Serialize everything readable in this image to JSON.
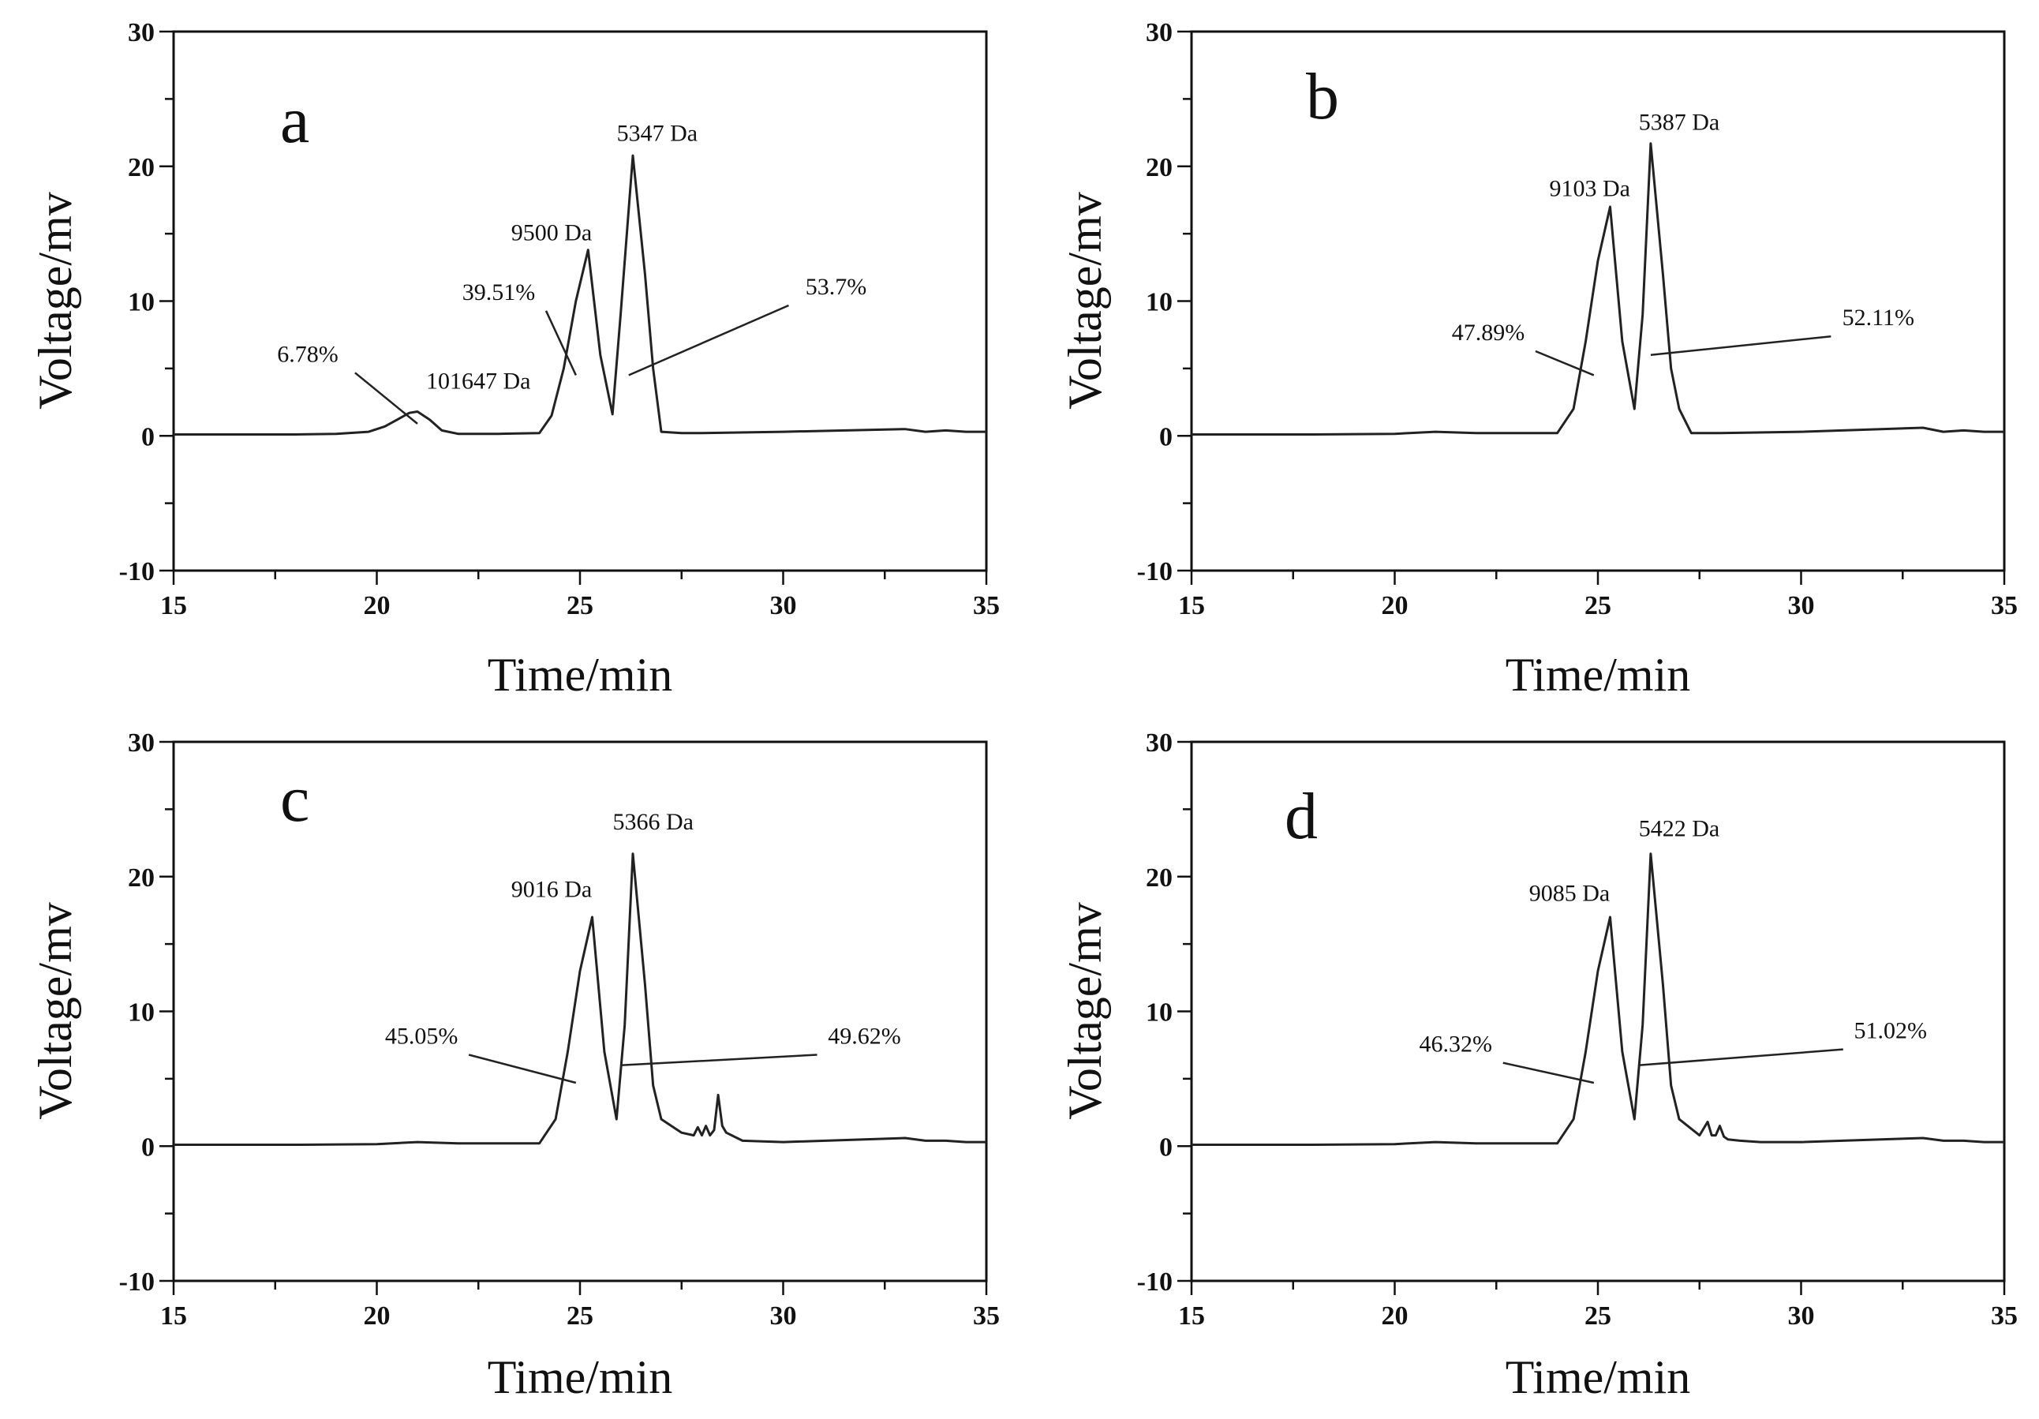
{
  "chart_data": [
    {
      "type": "line",
      "panel_label": "a",
      "xlabel": "Time/min",
      "ylabel": "Voltage/mv",
      "xlim": [
        15,
        35
      ],
      "ylim": [
        -10,
        30
      ],
      "xticks": [
        15,
        20,
        25,
        30,
        35
      ],
      "yticks": [
        -10,
        0,
        10,
        20,
        30
      ],
      "grid": false,
      "x": [
        15,
        16,
        17,
        18,
        19,
        19.8,
        20.2,
        20.5,
        20.8,
        21.0,
        21.3,
        21.6,
        22,
        23,
        24,
        24.3,
        24.6,
        24.9,
        25.2,
        25.5,
        25.8,
        26.0,
        26.3,
        26.6,
        26.8,
        27.0,
        27.5,
        28,
        30,
        33,
        33.5,
        34,
        34.5,
        35
      ],
      "y": [
        0.1,
        0.1,
        0.1,
        0.1,
        0.15,
        0.3,
        0.7,
        1.2,
        1.7,
        1.8,
        1.2,
        0.4,
        0.15,
        0.15,
        0.2,
        1.5,
        5.0,
        10.0,
        13.8,
        6.0,
        1.6,
        9.0,
        20.8,
        12.0,
        5.0,
        0.3,
        0.2,
        0.2,
        0.3,
        0.5,
        0.3,
        0.4,
        0.3,
        0.3
      ],
      "annotations": [
        {
          "text": "101647 Da",
          "x": 22.5,
          "y": 3.5,
          "kind": "label"
        },
        {
          "text": "6.78%",
          "x": 18.3,
          "y": 5.5,
          "kind": "label",
          "leader_to": [
            21.0,
            0.9
          ]
        },
        {
          "text": "9500 Da",
          "x": 24.3,
          "y": 14.5,
          "kind": "label"
        },
        {
          "text": "39.51%",
          "x": 23.0,
          "y": 10.1,
          "kind": "label",
          "leader_to": [
            24.9,
            4.5
          ]
        },
        {
          "text": "5347 Da",
          "x": 26.9,
          "y": 21.9,
          "kind": "label"
        },
        {
          "text": "53.7%",
          "x": 31.3,
          "y": 10.5,
          "kind": "label",
          "leader_to": [
            26.2,
            4.5
          ]
        }
      ]
    },
    {
      "type": "line",
      "panel_label": "b",
      "xlabel": "Time/min",
      "ylabel": "Voltage/mv",
      "xlim": [
        15,
        35
      ],
      "ylim": [
        -10,
        30
      ],
      "xticks": [
        15,
        20,
        25,
        30,
        35
      ],
      "yticks": [
        -10,
        0,
        10,
        20,
        30
      ],
      "grid": false,
      "x": [
        15,
        18,
        20,
        21,
        22,
        24,
        24.4,
        24.7,
        25.0,
        25.3,
        25.6,
        25.9,
        26.1,
        26.3,
        26.6,
        26.8,
        27.0,
        27.3,
        28,
        30,
        33,
        33.5,
        34,
        34.5,
        35
      ],
      "y": [
        0.1,
        0.1,
        0.15,
        0.3,
        0.2,
        0.2,
        2.0,
        7.0,
        13.0,
        17.0,
        7.0,
        2.0,
        9.0,
        21.7,
        12.0,
        5.0,
        2.0,
        0.2,
        0.2,
        0.3,
        0.6,
        0.3,
        0.4,
        0.3,
        0.3
      ],
      "annotations": [
        {
          "text": "9103 Da",
          "x": 24.8,
          "y": 17.8,
          "kind": "label"
        },
        {
          "text": "47.89%",
          "x": 22.3,
          "y": 7.1,
          "kind": "label",
          "leader_to": [
            24.9,
            4.5
          ]
        },
        {
          "text": "5387 Da",
          "x": 27.0,
          "y": 22.7,
          "kind": "label"
        },
        {
          "text": "52.11%",
          "x": 31.9,
          "y": 8.2,
          "kind": "label",
          "leader_to": [
            26.3,
            6.0
          ]
        }
      ]
    },
    {
      "type": "line",
      "panel_label": "c",
      "xlabel": "Time/min",
      "ylabel": "Voltage/mv",
      "xlim": [
        15,
        35
      ],
      "ylim": [
        -10,
        30
      ],
      "xticks": [
        15,
        20,
        25,
        30,
        35
      ],
      "yticks": [
        -10,
        0,
        10,
        20,
        30
      ],
      "grid": false,
      "x": [
        15,
        18,
        20,
        21,
        22,
        24,
        24.4,
        24.7,
        25.0,
        25.3,
        25.6,
        25.9,
        26.1,
        26.3,
        26.6,
        26.8,
        27.0,
        27.5,
        27.8,
        27.9,
        28.0,
        28.1,
        28.2,
        28.3,
        28.4,
        28.5,
        28.6,
        29.0,
        30,
        33,
        33.5,
        34,
        34.5,
        35
      ],
      "y": [
        0.1,
        0.1,
        0.15,
        0.3,
        0.2,
        0.2,
        2.0,
        7.0,
        13.0,
        17.0,
        7.0,
        2.0,
        9.0,
        21.7,
        12.0,
        4.5,
        2.0,
        1.0,
        0.8,
        1.4,
        0.8,
        1.5,
        0.8,
        1.2,
        3.8,
        1.5,
        1.0,
        0.4,
        0.3,
        0.6,
        0.4,
        0.4,
        0.3,
        0.3
      ],
      "annotations": [
        {
          "text": "9016 Da",
          "x": 24.3,
          "y": 18.5,
          "kind": "label"
        },
        {
          "text": "45.05%",
          "x": 21.1,
          "y": 7.6,
          "kind": "label",
          "leader_to": [
            24.9,
            4.7
          ]
        },
        {
          "text": "5366 Da",
          "x": 26.8,
          "y": 23.5,
          "kind": "label"
        },
        {
          "text": "49.62%",
          "x": 32.0,
          "y": 7.6,
          "kind": "label",
          "leader_to": [
            26.0,
            6.0
          ]
        }
      ]
    },
    {
      "type": "line",
      "panel_label": "d",
      "xlabel": "Time/min",
      "ylabel": "Voltage/mv",
      "xlim": [
        15,
        35
      ],
      "ylim": [
        -10,
        30
      ],
      "xticks": [
        15,
        20,
        25,
        30,
        35
      ],
      "yticks": [
        -10,
        0,
        10,
        20,
        30
      ],
      "grid": false,
      "x": [
        15,
        18,
        20,
        21,
        22,
        24,
        24.4,
        24.7,
        25.0,
        25.3,
        25.6,
        25.9,
        26.1,
        26.3,
        26.6,
        26.8,
        27.0,
        27.5,
        27.7,
        27.8,
        27.9,
        28.0,
        28.1,
        28.2,
        28.5,
        29.0,
        30,
        33,
        33.5,
        34,
        34.5,
        35
      ],
      "y": [
        0.1,
        0.1,
        0.15,
        0.3,
        0.2,
        0.2,
        2.0,
        7.0,
        13.0,
        17.0,
        7.0,
        2.0,
        9.0,
        21.7,
        12.0,
        4.5,
        2.0,
        0.8,
        1.8,
        0.8,
        0.8,
        1.5,
        0.7,
        0.5,
        0.4,
        0.3,
        0.3,
        0.6,
        0.4,
        0.4,
        0.3,
        0.3
      ],
      "annotations": [
        {
          "text": "9085 Da",
          "x": 24.3,
          "y": 18.2,
          "kind": "label"
        },
        {
          "text": "46.32%",
          "x": 21.5,
          "y": 7.0,
          "kind": "label",
          "leader_to": [
            24.9,
            4.7
          ]
        },
        {
          "text": "5422 Da",
          "x": 27.0,
          "y": 23.0,
          "kind": "label"
        },
        {
          "text": "51.02%",
          "x": 32.2,
          "y": 8.0,
          "kind": "label",
          "leader_to": [
            26.0,
            6.0
          ]
        }
      ]
    }
  ]
}
